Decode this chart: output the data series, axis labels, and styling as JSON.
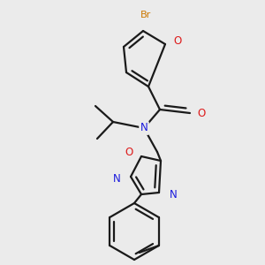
{
  "bg_color": "#ebebeb",
  "bond_color": "#1a1a1a",
  "bond_width": 1.6,
  "atom_colors": {
    "N": "#1a1add",
    "O": "#dd1a1a",
    "Br": "#cc7700"
  },
  "font_size": 8.5,
  "font_size_br": 8.0
}
